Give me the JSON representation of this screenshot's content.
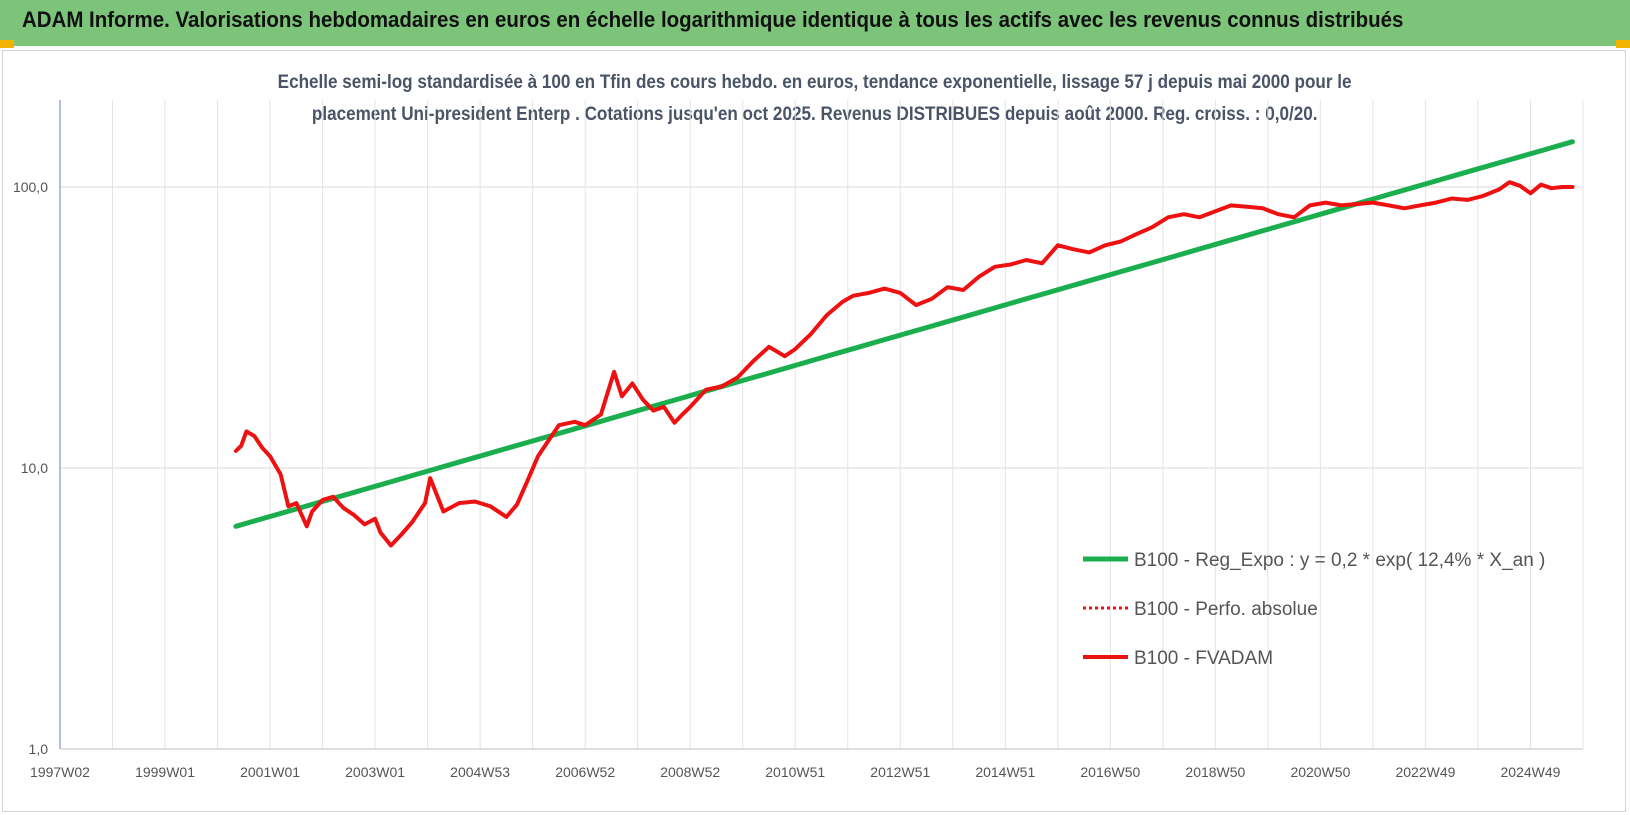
{
  "banner": {
    "title": "ADAM Informe. Valorisations hebdomadaires en euros en échelle logarithmique identique à tous les actifs avec les revenus connus distribués"
  },
  "colors": {
    "banner_bg": "#7cc47a",
    "regression": "#1aae4e",
    "fvadam": "#ee1111",
    "perfo": "#ee1111"
  },
  "chart_data": {
    "type": "line",
    "title_line1": "Echelle semi-log standardisée à 100 en Tfin des cours hebdo. en euros, tendance exponentielle, lissage 57 j depuis mai 2000 pour le",
    "title_line2": "placement Uni-president Enterp . Cotations jusqu'en oct 2025. Revenus DISTRIBUES depuis août 2000. Reg. croiss. : 0,0/20.",
    "y_scale": "log",
    "ylim": [
      1,
      170
    ],
    "y_ticks": [
      1,
      10,
      100
    ],
    "y_tick_labels": [
      "1,0",
      "10,0",
      "100,0"
    ],
    "x_ticks": [
      1997.0,
      1999.0,
      2001.0,
      2003.0,
      2005.0,
      2007.0,
      2009.0,
      2011.0,
      2013.0,
      2015.0,
      2017.0,
      2019.0,
      2021.0,
      2023.0,
      2025.0
    ],
    "x_tick_labels": [
      "1997W02",
      "1999W01",
      "2001W01",
      "2003W01",
      "2004W53",
      "2006W52",
      "2008W52",
      "2010W51",
      "2012W51",
      "2014W51",
      "2016W50",
      "2018W50",
      "2020W50",
      "2022W49",
      "2024W49"
    ],
    "xlim": [
      1997.0,
      2026.0
    ],
    "grid": true,
    "legend_position": "bottom-right",
    "series": [
      {
        "name": "B100 - Reg_Expo : y = 0,2 * exp( 12,4% *  X_an )",
        "style": "solid",
        "x": [
          2000.35,
          2025.8
        ],
        "y": [
          6.2,
          145
        ]
      },
      {
        "name": "B100 - Perfo. absolue",
        "style": "dotted",
        "x": [],
        "y": []
      },
      {
        "name": "B100 - FVADAM",
        "style": "solid",
        "x": [
          2000.35,
          2000.45,
          2000.55,
          2000.7,
          2000.85,
          2001.0,
          2001.2,
          2001.35,
          2001.5,
          2001.7,
          2001.8,
          2002.0,
          2002.2,
          2002.4,
          2002.6,
          2002.8,
          2003.0,
          2003.1,
          2003.3,
          2003.5,
          2003.7,
          2003.95,
          2004.05,
          2004.3,
          2004.6,
          2004.9,
          2005.2,
          2005.5,
          2005.7,
          2005.9,
          2006.1,
          2006.3,
          2006.5,
          2006.8,
          2007.0,
          2007.3,
          2007.55,
          2007.7,
          2007.9,
          2008.1,
          2008.3,
          2008.5,
          2008.7,
          2008.85,
          2009.0,
          2009.3,
          2009.6,
          2009.9,
          2010.2,
          2010.5,
          2010.8,
          2011.0,
          2011.3,
          2011.6,
          2011.9,
          2012.1,
          2012.4,
          2012.7,
          2013.0,
          2013.3,
          2013.6,
          2013.9,
          2014.2,
          2014.5,
          2014.8,
          2015.1,
          2015.4,
          2015.7,
          2016.0,
          2016.3,
          2016.6,
          2016.9,
          2017.2,
          2017.5,
          2017.8,
          2018.1,
          2018.4,
          2018.7,
          2019.0,
          2019.3,
          2019.6,
          2019.9,
          2020.2,
          2020.5,
          2020.8,
          2021.1,
          2021.4,
          2021.7,
          2022.0,
          2022.3,
          2022.6,
          2022.9,
          2023.2,
          2023.5,
          2023.8,
          2024.1,
          2024.4,
          2024.6,
          2024.8,
          2025.0,
          2025.2,
          2025.4,
          2025.6,
          2025.8
        ],
        "y": [
          11.5,
          12.0,
          13.5,
          13.0,
          11.8,
          11.0,
          9.5,
          7.3,
          7.5,
          6.2,
          7.0,
          7.7,
          7.9,
          7.2,
          6.8,
          6.3,
          6.6,
          5.9,
          5.3,
          5.8,
          6.4,
          7.5,
          9.2,
          7.0,
          7.5,
          7.6,
          7.3,
          6.7,
          7.4,
          9.0,
          11.0,
          12.5,
          14.2,
          14.6,
          14.2,
          15.5,
          22.0,
          18.0,
          20.0,
          17.5,
          16.0,
          16.5,
          14.5,
          15.5,
          16.5,
          19.0,
          19.5,
          21.0,
          24.0,
          27.0,
          25.0,
          26.5,
          30.0,
          35.0,
          39.0,
          41.0,
          42.0,
          43.5,
          42.0,
          38.0,
          40.0,
          44.0,
          43.0,
          48.0,
          52.0,
          53.0,
          55.0,
          53.5,
          62.0,
          60.0,
          58.5,
          62.0,
          64.0,
          68.0,
          72.0,
          78.0,
          80.0,
          78.0,
          82.0,
          86.0,
          85.0,
          84.0,
          80.0,
          78.0,
          86.0,
          88.0,
          86.0,
          87.0,
          88.0,
          86.0,
          84.0,
          86.0,
          88.0,
          91.0,
          90.0,
          93.0,
          98.0,
          104.0,
          101.0,
          95.0,
          102.0,
          99.0,
          100.0,
          100.0
        ]
      }
    ]
  }
}
